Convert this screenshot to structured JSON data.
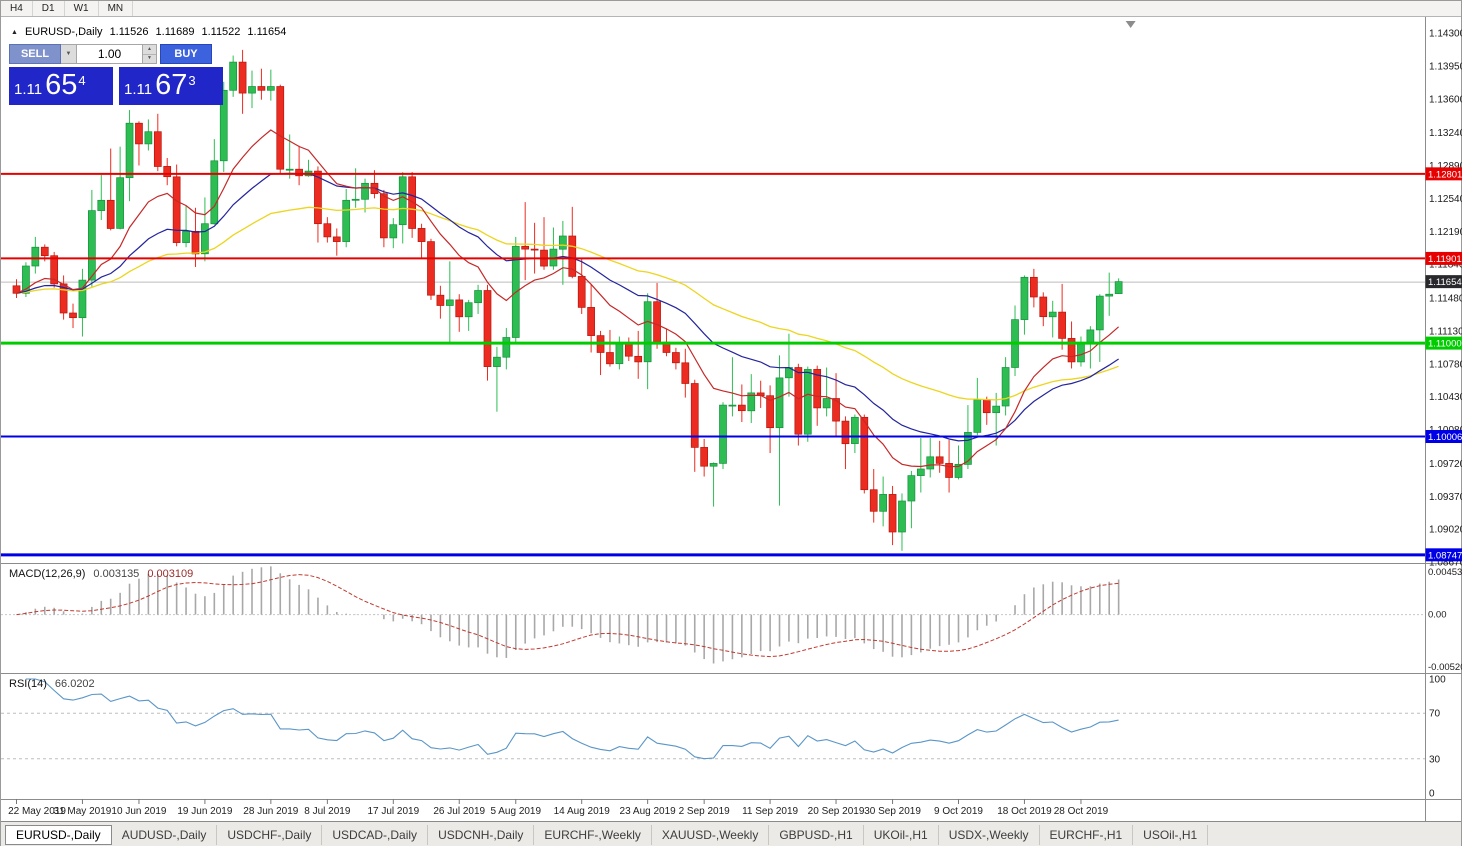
{
  "toolbar": {
    "timeframes": [
      "H4",
      "D1",
      "W1",
      "MN"
    ]
  },
  "chart_header": {
    "symbol": "EURUSD-,Daily",
    "open": "1.11526",
    "high": "1.11689",
    "low": "1.11522",
    "close": "1.11654"
  },
  "trade_panel": {
    "sell_label": "SELL",
    "buy_label": "BUY",
    "volume": "1.00",
    "sell_price": {
      "base": "1.11",
      "pips": "65",
      "sup": "4"
    },
    "buy_price": {
      "base": "1.11",
      "pips": "67",
      "sup": "3"
    }
  },
  "price_axis": {
    "labels": [
      "1.14300",
      "1.13950",
      "1.13600",
      "1.13240",
      "1.12890",
      "1.12540",
      "1.12190",
      "1.11840",
      "1.11480",
      "1.11130",
      "1.10780",
      "1.10430",
      "1.10080",
      "1.09720",
      "1.09370",
      "1.09020",
      "1.08670"
    ]
  },
  "hlines": [
    {
      "price": 1.12801,
      "color": "#e60000",
      "width": 2,
      "tag": "1.12801"
    },
    {
      "price": 1.11901,
      "color": "#e60000",
      "width": 2,
      "tag": "1.11901"
    },
    {
      "price": 1.11,
      "color": "#00cc00",
      "width": 3,
      "tag": "1.11000"
    },
    {
      "price": 1.10006,
      "color": "#0000e6",
      "width": 2,
      "tag": "1.10006"
    },
    {
      "price": 1.08747,
      "color": "#0000e6",
      "width": 3,
      "tag": "1.08747"
    }
  ],
  "current_price": {
    "price": 1.11654,
    "tag": "1.11654"
  },
  "macd_panel": {
    "name": "MACD(12,26,9)",
    "value_main": "0.003135",
    "value_signal": "0.003109",
    "axis_top": "0.004536",
    "axis_zero": "0.00",
    "axis_bottom": "-0.005205"
  },
  "rsi_panel": {
    "name": "RSI(14)",
    "value": "66.0202",
    "axis": [
      "100",
      "70",
      "30",
      "0"
    ],
    "levels": [
      70,
      30
    ]
  },
  "date_axis": [
    {
      "label": "22 May 2019",
      "index": 0
    },
    {
      "label": "31 May 2019",
      "index": 7
    },
    {
      "label": "10 Jun 2019",
      "index": 13
    },
    {
      "label": "19 Jun 2019",
      "index": 20
    },
    {
      "label": "28 Jun 2019",
      "index": 27
    },
    {
      "label": "8 Jul 2019",
      "index": 33
    },
    {
      "label": "17 Jul 2019",
      "index": 40
    },
    {
      "label": "26 Jul 2019",
      "index": 47
    },
    {
      "label": "5 Aug 2019",
      "index": 53
    },
    {
      "label": "14 Aug 2019",
      "index": 60
    },
    {
      "label": "23 Aug 2019",
      "index": 67
    },
    {
      "label": "2 Sep 2019",
      "index": 73
    },
    {
      "label": "11 Sep 2019",
      "index": 80
    },
    {
      "label": "20 Sep 2019",
      "index": 87
    },
    {
      "label": "30 Sep 2019",
      "index": 93
    },
    {
      "label": "9 Oct 2019",
      "index": 100
    },
    {
      "label": "18 Oct 2019",
      "index": 107
    },
    {
      "label": "28 Oct 2019",
      "index": 113
    }
  ],
  "tabs": [
    "EURUSD-,Daily",
    "AUDUSD-,Daily",
    "USDCHF-,Daily",
    "USDCAD-,Daily",
    "USDCNH-,Daily",
    "EURCHF-,Weekly",
    "XAUUSD-,Weekly",
    "GBPUSD-,H1",
    "UKOil-,H1",
    "USDX-,Weekly",
    "EURCHF-,H1",
    "USOil-,H1"
  ],
  "active_tab": "EURUSD-,Daily",
  "colors": {
    "bull": "#2dbd52",
    "bull_border": "#14913c",
    "bear": "#ec2c20",
    "bear_border": "#b5150d",
    "ma_fast": "#c62828",
    "ma_mid": "#24249e",
    "ma_slow": "#ecd51e",
    "macd_hist": "#a8a8a8",
    "macd_signal": "#c03a30",
    "rsi_line": "#5a96c8",
    "current_line": "#bcbcbc",
    "current_tag_bg": "#28282d"
  },
  "chart_data": {
    "type": "candlestick",
    "title": "EURUSD-,Daily",
    "price_axis_range": [
      1.0866,
      1.1447
    ],
    "indicator_periods": {
      "ma_fast": 12,
      "ma_mid": 26,
      "ma_slow": 50,
      "macd": [
        12,
        26,
        9
      ],
      "rsi": 14
    },
    "ohlc": [
      [
        1.1161,
        1.1168,
        1.1148,
        1.1153
      ],
      [
        1.1153,
        1.1186,
        1.1149,
        1.1182
      ],
      [
        1.1182,
        1.1213,
        1.1174,
        1.1202
      ],
      [
        1.1202,
        1.1205,
        1.1187,
        1.1193
      ],
      [
        1.1193,
        1.1197,
        1.1159,
        1.1163
      ],
      [
        1.1163,
        1.1172,
        1.1125,
        1.1132
      ],
      [
        1.1132,
        1.1142,
        1.1116,
        1.1127
      ],
      [
        1.1127,
        1.1179,
        1.1107,
        1.1167
      ],
      [
        1.1167,
        1.1263,
        1.116,
        1.1241
      ],
      [
        1.1241,
        1.1279,
        1.1231,
        1.1252
      ],
      [
        1.1252,
        1.1307,
        1.122,
        1.1222
      ],
      [
        1.1222,
        1.1309,
        1.1221,
        1.1276
      ],
      [
        1.1276,
        1.1348,
        1.1251,
        1.1334
      ],
      [
        1.1334,
        1.1336,
        1.1289,
        1.1312
      ],
      [
        1.1312,
        1.1338,
        1.1305,
        1.1325
      ],
      [
        1.1325,
        1.1344,
        1.1283,
        1.1288
      ],
      [
        1.1288,
        1.1297,
        1.1268,
        1.1277
      ],
      [
        1.1277,
        1.129,
        1.1203,
        1.1207
      ],
      [
        1.1207,
        1.1246,
        1.1202,
        1.1219
      ],
      [
        1.1219,
        1.1244,
        1.1181,
        1.1195
      ],
      [
        1.1195,
        1.1255,
        1.1187,
        1.1227
      ],
      [
        1.1227,
        1.1317,
        1.1226,
        1.1294
      ],
      [
        1.1294,
        1.1378,
        1.1282,
        1.1369
      ],
      [
        1.1369,
        1.1406,
        1.1362,
        1.1399
      ],
      [
        1.1399,
        1.1412,
        1.1344,
        1.1366
      ],
      [
        1.1366,
        1.139,
        1.135,
        1.1373
      ],
      [
        1.1373,
        1.1392,
        1.1359,
        1.1369
      ],
      [
        1.1369,
        1.1391,
        1.1358,
        1.1373
      ],
      [
        1.1373,
        1.1375,
        1.1281,
        1.1285
      ],
      [
        1.1285,
        1.1322,
        1.1275,
        1.1285
      ],
      [
        1.1285,
        1.131,
        1.1268,
        1.1278
      ],
      [
        1.1278,
        1.1295,
        1.1277,
        1.1283
      ],
      [
        1.1283,
        1.1288,
        1.1207,
        1.1227
      ],
      [
        1.1227,
        1.1234,
        1.1207,
        1.1213
      ],
      [
        1.1213,
        1.1222,
        1.1193,
        1.1208
      ],
      [
        1.1208,
        1.1264,
        1.1202,
        1.1252
      ],
      [
        1.1252,
        1.1286,
        1.1244,
        1.1253
      ],
      [
        1.1253,
        1.1275,
        1.1239,
        1.127
      ],
      [
        1.127,
        1.1284,
        1.1254,
        1.1259
      ],
      [
        1.1259,
        1.1263,
        1.1202,
        1.1212
      ],
      [
        1.1212,
        1.1233,
        1.1201,
        1.1226
      ],
      [
        1.1226,
        1.1282,
        1.1206,
        1.1277
      ],
      [
        1.1277,
        1.1282,
        1.1212,
        1.1222
      ],
      [
        1.1222,
        1.1227,
        1.119,
        1.1208
      ],
      [
        1.1208,
        1.1211,
        1.1146,
        1.1151
      ],
      [
        1.1151,
        1.1161,
        1.1126,
        1.114
      ],
      [
        1.114,
        1.1187,
        1.1101,
        1.1146
      ],
      [
        1.1146,
        1.1152,
        1.1112,
        1.1128
      ],
      [
        1.1128,
        1.1146,
        1.1113,
        1.1143
      ],
      [
        1.1143,
        1.1162,
        1.1131,
        1.1156
      ],
      [
        1.1156,
        1.1162,
        1.106,
        1.1075
      ],
      [
        1.1075,
        1.1096,
        1.1027,
        1.1085
      ],
      [
        1.1085,
        1.1116,
        1.1072,
        1.1106
      ],
      [
        1.1106,
        1.1213,
        1.1101,
        1.1203
      ],
      [
        1.1203,
        1.125,
        1.1167,
        1.12
      ],
      [
        1.12,
        1.1228,
        1.1174,
        1.1199
      ],
      [
        1.1199,
        1.1234,
        1.1178,
        1.1182
      ],
      [
        1.1182,
        1.1223,
        1.1178,
        1.12
      ],
      [
        1.12,
        1.123,
        1.1162,
        1.1214
      ],
      [
        1.1214,
        1.1245,
        1.1169,
        1.1171
      ],
      [
        1.1171,
        1.119,
        1.1131,
        1.1138
      ],
      [
        1.1138,
        1.1163,
        1.109,
        1.1108
      ],
      [
        1.1108,
        1.1113,
        1.1066,
        1.109
      ],
      [
        1.109,
        1.1114,
        1.1075,
        1.1078
      ],
      [
        1.1078,
        1.1107,
        1.1072,
        1.1099
      ],
      [
        1.1099,
        1.1106,
        1.1081,
        1.1086
      ],
      [
        1.1086,
        1.1113,
        1.1062,
        1.108
      ],
      [
        1.108,
        1.1153,
        1.1051,
        1.1144
      ],
      [
        1.1144,
        1.1164,
        1.1094,
        1.1101
      ],
      [
        1.1101,
        1.1115,
        1.1086,
        1.109
      ],
      [
        1.109,
        1.1095,
        1.1072,
        1.1079
      ],
      [
        1.1079,
        1.1094,
        1.1042,
        1.1057
      ],
      [
        1.1057,
        1.1061,
        1.0963,
        1.0989
      ],
      [
        1.0989,
        1.0998,
        1.0958,
        1.0969
      ],
      [
        1.0969,
        1.0973,
        1.0926,
        1.0972
      ],
      [
        1.0972,
        1.1037,
        1.0966,
        1.1034
      ],
      [
        1.1034,
        1.1085,
        1.1022,
        1.1034
      ],
      [
        1.1034,
        1.1056,
        1.1016,
        1.1028
      ],
      [
        1.1028,
        1.1067,
        1.1015,
        1.1047
      ],
      [
        1.1047,
        1.106,
        1.1031,
        1.1044
      ],
      [
        1.1044,
        1.1055,
        1.0983,
        1.101
      ],
      [
        1.101,
        1.1087,
        1.0927,
        1.1063
      ],
      [
        1.1063,
        1.111,
        1.1043,
        1.1074
      ],
      [
        1.1074,
        1.1078,
        1.0991,
        1.1003
      ],
      [
        1.1003,
        1.1075,
        1.0995,
        1.1072
      ],
      [
        1.1072,
        1.1076,
        1.1012,
        1.1031
      ],
      [
        1.1031,
        1.1074,
        1.1022,
        1.1041
      ],
      [
        1.1041,
        1.1068,
        1.1,
        1.1017
      ],
      [
        1.1017,
        1.1022,
        1.0966,
        1.0993
      ],
      [
        1.0993,
        1.1024,
        1.0983,
        1.1021
      ],
      [
        1.1021,
        1.1024,
        1.094,
        1.0944
      ],
      [
        1.0944,
        1.0966,
        1.0909,
        1.0921
      ],
      [
        1.0921,
        1.0958,
        1.0905,
        1.0939
      ],
      [
        1.0939,
        1.0948,
        1.0885,
        1.0899
      ],
      [
        1.0899,
        1.094,
        1.0879,
        1.0932
      ],
      [
        1.0932,
        1.0964,
        1.0903,
        1.0959
      ],
      [
        1.0959,
        1.0999,
        1.0941,
        1.0966
      ],
      [
        1.0966,
        1.0999,
        1.0957,
        1.0979
      ],
      [
        1.0979,
        1.0996,
        1.0962,
        1.0972
      ],
      [
        1.0972,
        1.0997,
        1.0941,
        1.0957
      ],
      [
        1.0957,
        1.0991,
        1.0955,
        1.0971
      ],
      [
        1.0971,
        1.1034,
        1.0966,
        1.1005
      ],
      [
        1.1005,
        1.1063,
        1.1002,
        1.104
      ],
      [
        1.104,
        1.1043,
        1.1013,
        1.1026
      ],
      [
        1.1026,
        1.1047,
        1.0991,
        1.1033
      ],
      [
        1.1033,
        1.1085,
        1.1023,
        1.1074
      ],
      [
        1.1074,
        1.114,
        1.1065,
        1.1125
      ],
      [
        1.1125,
        1.1172,
        1.1109,
        1.117
      ],
      [
        1.117,
        1.1179,
        1.1138,
        1.1149
      ],
      [
        1.1149,
        1.1154,
        1.1118,
        1.1128
      ],
      [
        1.1128,
        1.1145,
        1.1106,
        1.1133
      ],
      [
        1.1133,
        1.1163,
        1.1093,
        1.1105
      ],
      [
        1.1105,
        1.1123,
        1.1073,
        1.108
      ],
      [
        1.108,
        1.1107,
        1.1075,
        1.1099
      ],
      [
        1.1099,
        1.1118,
        1.1073,
        1.1114
      ],
      [
        1.1114,
        1.1152,
        1.108,
        1.115
      ],
      [
        1.115,
        1.1175,
        1.1129,
        1.1152
      ],
      [
        1.11526,
        1.11689,
        1.11522,
        1.11654
      ]
    ]
  }
}
